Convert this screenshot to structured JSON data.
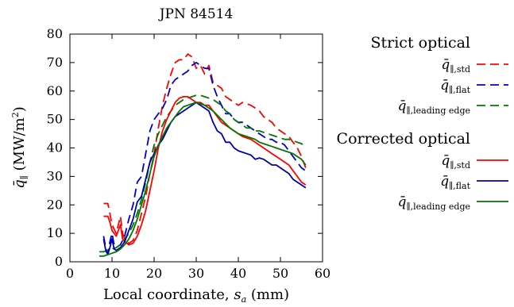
{
  "chart_data": {
    "type": "line",
    "title": "JPN 84514",
    "xlabel": {
      "text": "Local coordinate, ",
      "var": "s",
      "sub": "a",
      "unit": " (mm)"
    },
    "ylabel": {
      "text": "q̄",
      "sub": "∥",
      "unit": " (MW/m",
      "sup": "2",
      "close": ")"
    },
    "xlim": [
      0,
      60
    ],
    "ylim": [
      0,
      80
    ],
    "xticks": [
      "0",
      "10",
      "20",
      "30",
      "40",
      "50",
      "60"
    ],
    "yticks": [
      "0",
      "10",
      "20",
      "30",
      "40",
      "50",
      "60",
      "70",
      "80"
    ],
    "grid": false,
    "legend": {
      "placement": "right-outside",
      "groups": [
        {
          "heading": "Strict optical",
          "entries": [
            {
              "sym": "q̄",
              "sub": "∥,std"
            },
            {
              "sym": "q̄",
              "sub": "∥,flat"
            },
            {
              "sym": "q̄",
              "sub": "∥,leading edge"
            }
          ]
        },
        {
          "heading": "Corrected optical",
          "entries": [
            {
              "sym": "q̄",
              "sub": "∥,std"
            },
            {
              "sym": "q̄",
              "sub": "∥,flat"
            },
            {
              "sym": "q̄",
              "sub": "∥,leading edge"
            }
          ]
        }
      ]
    },
    "series": [
      {
        "group": "Strict optical",
        "sub": "∥,std",
        "color": "#ff0000",
        "dash": true,
        "x": [
          8,
          9,
          9.5,
          10,
          11,
          12,
          12.5,
          13,
          14,
          15,
          16,
          17,
          18,
          19,
          20,
          21,
          22,
          23,
          24,
          25,
          26,
          27,
          28,
          29,
          30,
          31,
          32,
          33,
          34,
          35,
          36,
          37,
          38,
          39,
          40,
          41,
          42,
          43,
          44,
          45,
          46,
          47,
          48,
          49,
          50,
          51,
          52,
          53,
          54,
          55,
          56
        ],
        "y": [
          20.5,
          20.5,
          17,
          13,
          10,
          16,
          10,
          8,
          6.5,
          7.5,
          11,
          17,
          23,
          31,
          38,
          47,
          55,
          61,
          66,
          70,
          71,
          71,
          73,
          72,
          68,
          69,
          66,
          69,
          63,
          62,
          61,
          58,
          57,
          56,
          55,
          56,
          55.5,
          55,
          54,
          53,
          51,
          50,
          49,
          47,
          46,
          45,
          44,
          42,
          40,
          37,
          33
        ]
      },
      {
        "group": "Strict optical",
        "sub": "∥,flat",
        "color": "#0000cc",
        "dash": true,
        "x": [
          8,
          8.5,
          9,
          9.5,
          10,
          10.5,
          11,
          12,
          13,
          14,
          15,
          16,
          17,
          18,
          19,
          20,
          21,
          22,
          23,
          24,
          25,
          26,
          27,
          28,
          29,
          30,
          31,
          32,
          33,
          34,
          35,
          36,
          37,
          38,
          39,
          40,
          41,
          42,
          43,
          44,
          45,
          46,
          47,
          48,
          49,
          50,
          51,
          52,
          53,
          54,
          55,
          56
        ],
        "y": [
          9,
          5,
          3,
          7,
          10,
          6,
          5,
          6,
          9,
          15,
          20,
          28,
          30,
          38,
          46,
          50,
          52,
          54,
          57,
          62,
          64,
          65,
          66,
          67,
          69,
          70,
          69,
          68,
          68,
          62,
          58,
          55,
          52,
          52,
          50,
          49,
          49,
          48,
          47,
          46,
          45,
          44,
          43,
          43,
          42,
          42,
          41,
          39,
          37,
          35,
          33,
          32
        ]
      },
      {
        "group": "Strict optical",
        "sub": "∥,leading edge",
        "color": "#007700",
        "dash": true,
        "x": [
          7,
          8,
          9,
          10,
          11,
          12,
          13,
          14,
          15,
          16,
          17,
          18,
          19,
          20,
          21,
          22,
          23,
          24,
          25,
          26,
          27,
          28,
          29,
          30,
          31,
          32,
          33,
          34,
          35,
          36,
          37,
          38,
          39,
          40,
          41,
          42,
          43,
          44,
          45,
          46,
          47,
          48,
          49,
          50,
          51,
          52,
          53,
          54,
          55,
          56
        ],
        "y": [
          3.5,
          3.5,
          4,
          4.5,
          5,
          6,
          8,
          10,
          13,
          17,
          22,
          28,
          35,
          41,
          45,
          48,
          51,
          53,
          55,
          56,
          57,
          57.5,
          58,
          58.5,
          58.5,
          58,
          57.5,
          57,
          56,
          55,
          53,
          52,
          50,
          49,
          48,
          47,
          47,
          46,
          46,
          45.5,
          45,
          44.5,
          44,
          43.5,
          43,
          43,
          42.5,
          42,
          41.5,
          40.5
        ]
      },
      {
        "group": "Corrected optical",
        "sub": "∥,std",
        "color": "#ff0000",
        "dash": false,
        "x": [
          8,
          9,
          9.5,
          10,
          11,
          12,
          12.5,
          13,
          14,
          15,
          16,
          17,
          18,
          19,
          20,
          21,
          22,
          23,
          24,
          25,
          26,
          27,
          28,
          29,
          30,
          31,
          32,
          33,
          34,
          35,
          36,
          37,
          38,
          39,
          40,
          41,
          42,
          43,
          44,
          45,
          46,
          47,
          48,
          49,
          50,
          51,
          52,
          53,
          54,
          55,
          56
        ],
        "y": [
          16,
          16,
          14,
          11,
          9,
          13,
          8,
          7,
          6,
          6.5,
          9,
          13,
          18,
          25,
          32,
          40,
          46,
          50,
          53,
          56,
          57.5,
          58,
          58,
          57,
          56,
          56,
          55,
          55,
          53,
          51,
          49,
          48,
          47,
          46,
          45,
          44,
          43.5,
          43,
          42,
          41,
          40,
          39,
          38,
          37,
          36,
          35,
          34,
          32,
          30,
          28,
          27
        ]
      },
      {
        "group": "Corrected optical",
        "sub": "∥,flat",
        "color": "#0000aa",
        "dash": false,
        "x": [
          8,
          8.5,
          9,
          9.5,
          10,
          10.5,
          11,
          12,
          13,
          14,
          15,
          16,
          17,
          18,
          19,
          20,
          21,
          22,
          23,
          24,
          25,
          26,
          27,
          28,
          29,
          30,
          31,
          32,
          33,
          34,
          35,
          36,
          37,
          38,
          39,
          40,
          41,
          42,
          43,
          44,
          45,
          46,
          47,
          48,
          49,
          50,
          51,
          52,
          53,
          54,
          55,
          56
        ],
        "y": [
          8,
          4,
          2.5,
          5,
          8,
          4.5,
          4,
          5,
          7,
          11,
          15,
          21,
          23,
          29,
          35,
          38,
          41,
          43,
          46,
          49,
          51,
          52,
          53,
          54,
          55,
          56,
          55,
          54,
          53,
          49,
          46,
          45,
          42,
          42,
          40,
          39,
          38.5,
          38,
          37.5,
          36,
          36.5,
          36,
          35,
          34,
          34,
          33,
          32,
          31,
          29,
          28,
          27,
          26
        ]
      },
      {
        "group": "Corrected optical",
        "sub": "∥,leading edge",
        "color": "#007700",
        "dash": false,
        "x": [
          7,
          8,
          9,
          10,
          11,
          12,
          13,
          14,
          15,
          16,
          17,
          18,
          19,
          20,
          21,
          22,
          23,
          24,
          25,
          26,
          27,
          28,
          29,
          30,
          31,
          32,
          33,
          34,
          35,
          36,
          37,
          38,
          39,
          40,
          41,
          42,
          43,
          44,
          45,
          46,
          47,
          48,
          49,
          50,
          51,
          52,
          53,
          54,
          55,
          56
        ],
        "y": [
          2,
          2,
          2.5,
          3,
          3.5,
          4.5,
          6,
          8,
          11,
          15,
          20,
          25,
          31,
          37,
          41,
          44,
          47,
          49,
          51,
          53,
          54.5,
          55,
          55.5,
          56,
          55.5,
          55,
          54,
          53,
          51.5,
          50,
          48.5,
          47,
          46,
          45,
          44.5,
          44,
          43.5,
          43,
          42,
          41.5,
          41,
          40.5,
          40,
          39.5,
          39,
          38.5,
          38,
          37,
          36,
          34
        ]
      }
    ]
  }
}
